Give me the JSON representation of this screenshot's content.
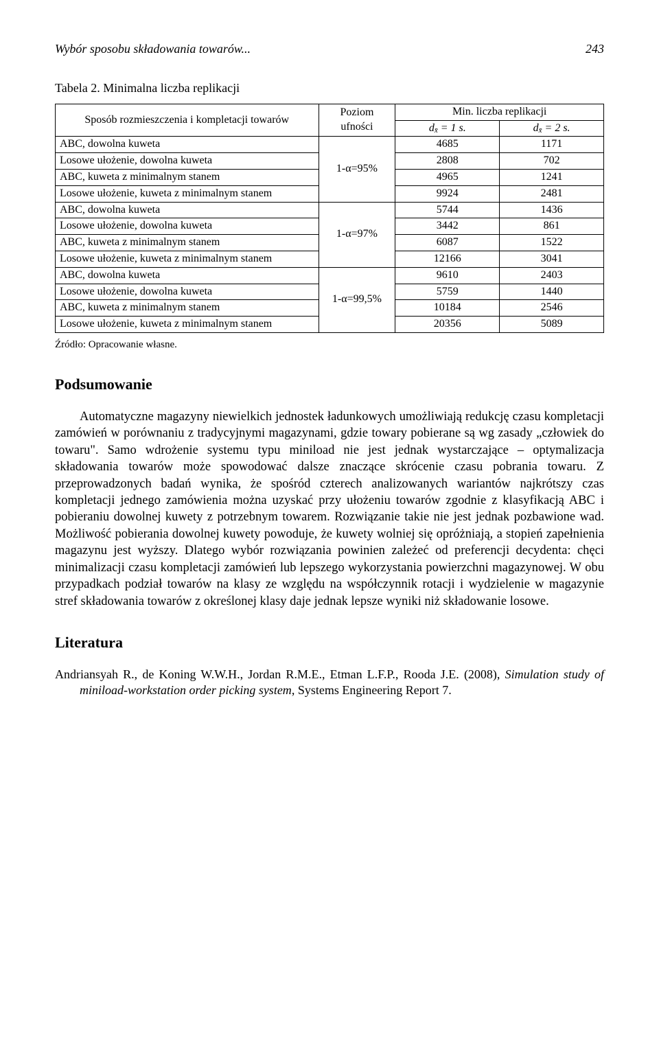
{
  "header": {
    "running_title": "Wybór sposobu składowania towarów...",
    "page_number": "243"
  },
  "table": {
    "caption": "Tabela 2. Minimalna liczba replikacji",
    "columns": {
      "method": "Sposób rozmieszczenia i kompletacji towarów",
      "level": "Poziom ufności",
      "min_header": "Min. liczba replikacji",
      "d1": "d_{x̄} = 1 s.",
      "d2": "d_{x̄} = 2 s."
    },
    "groups": [
      {
        "level": "1-α=95%",
        "rows": [
          {
            "method": "ABC, dowolna kuweta",
            "v1": "4685",
            "v2": "1171"
          },
          {
            "method": "Losowe ułożenie, dowolna kuweta",
            "v1": "2808",
            "v2": "702"
          },
          {
            "method": "ABC, kuweta z minimalnym stanem",
            "v1": "4965",
            "v2": "1241"
          },
          {
            "method": "Losowe ułożenie, kuweta z minimalnym stanem",
            "v1": "9924",
            "v2": "2481"
          }
        ]
      },
      {
        "level": "1-α=97%",
        "rows": [
          {
            "method": "ABC, dowolna kuweta",
            "v1": "5744",
            "v2": "1436"
          },
          {
            "method": "Losowe ułożenie, dowolna kuweta",
            "v1": "3442",
            "v2": "861"
          },
          {
            "method": "ABC, kuweta z minimalnym stanem",
            "v1": "6087",
            "v2": "1522"
          },
          {
            "method": "Losowe ułożenie, kuweta z minimalnym stanem",
            "v1": "12166",
            "v2": "3041"
          }
        ]
      },
      {
        "level": "1-α=99,5%",
        "rows": [
          {
            "method": "ABC, dowolna kuweta",
            "v1": "9610",
            "v2": "2403"
          },
          {
            "method": "Losowe ułożenie, dowolna kuweta",
            "v1": "5759",
            "v2": "1440"
          },
          {
            "method": "ABC, kuweta z minimalnym stanem",
            "v1": "10184",
            "v2": "2546"
          },
          {
            "method": "Losowe ułożenie, kuweta z minimalnym stanem",
            "v1": "20356",
            "v2": "5089"
          }
        ]
      }
    ],
    "source_note": "Źródło: Opracowanie własne."
  },
  "summary": {
    "heading": "Podsumowanie",
    "paragraph": "Automatyczne magazyny niewielkich jednostek ładunkowych umożliwiają redukcję czasu kompletacji zamówień w porównaniu z tradycyjnymi magazynami, gdzie towary pobierane są wg zasady „człowiek do towaru\". Samo wdrożenie systemu typu miniload nie jest jednak wystarczające – optymalizacja składowania towarów może spowodować dalsze znaczące skrócenie czasu pobrania towaru. Z przeprowadzonych badań wynika, że spośród czterech analizowanych wariantów najkrótszy czas kompletacji jednego zamówienia można uzyskać przy ułożeniu towarów zgodnie z klasyfikacją ABC i pobieraniu dowolnej kuwety z potrzebnym towarem. Rozwiązanie takie nie jest jednak pozbawione wad. Możliwość pobierania dowolnej kuwety powoduje, że kuwety wolniej się opróżniają, a stopień zapełnienia magazynu jest wyższy. Dlatego wybór rozwiązania powinien zależeć od preferencji decydenta: chęci minimalizacji czasu kompletacji zamówień lub lepszego wykorzystania powierzchni magazynowej. W obu przypadkach podział towarów na klasy ze względu na współczynnik rotacji i wydzielenie w magazynie stref składowania towarów z określonej klasy daje jednak lepsze wyniki niż składowanie losowe."
  },
  "literature": {
    "heading": "Literatura",
    "entries": [
      {
        "authors": "Andriansyah R., de Koning W.W.H., Jordan R.M.E., Etman L.F.P., Rooda J.E. (2008),",
        "title": "Simulation study of miniload-workstation order picking system",
        "rest": ", Systems Engineering Report 7."
      }
    ]
  },
  "style": {
    "page_bg": "#ffffff",
    "text_color": "#000000",
    "border_color": "#000000",
    "body_font": "Times New Roman",
    "body_font_size_pt": 12,
    "table_font_size_pt": 10.5,
    "section_heading_size_pt": 14
  }
}
